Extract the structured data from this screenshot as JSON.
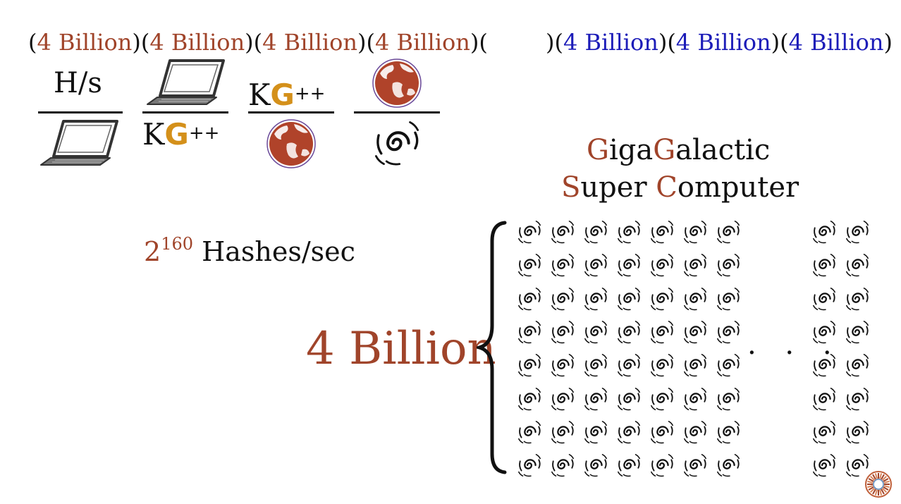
{
  "top_row": {
    "left_groups": [
      "4 Billion",
      "4 Billion",
      "4 Billion",
      "4 Billion"
    ],
    "right_groups": [
      "4 Billion",
      "4 Billion",
      "4 Billion"
    ],
    "open_paren": "(",
    "close_paren": ")",
    "left_color": "#A0442A",
    "right_color": "#1C1CB8"
  },
  "fractions": {
    "hs_label": "H/s",
    "kg_letter_k": "K",
    "kg_letter_g": "G",
    "kg_plus": "++",
    "kg_g_color": "#D4901A",
    "icons": [
      "laptop-icon",
      "earth-icon",
      "galaxy-icon"
    ]
  },
  "title": {
    "line1_parts": [
      "G",
      "iga",
      "G",
      "alactic"
    ],
    "line2_parts": [
      "S",
      "uper ",
      "C",
      "omputer"
    ],
    "accent_color": "#A0442A"
  },
  "hashes": {
    "base": "2",
    "exponent": "160",
    "label": "Hashes/sec"
  },
  "big_label": "4 Billion",
  "brace": "{",
  "ellipsis": ". . .",
  "grid": {
    "rows": 8,
    "left_columns": 7,
    "right_columns": 2,
    "cell_icon": "galaxy-icon"
  },
  "corner_logo": "sunburst-logo-icon"
}
